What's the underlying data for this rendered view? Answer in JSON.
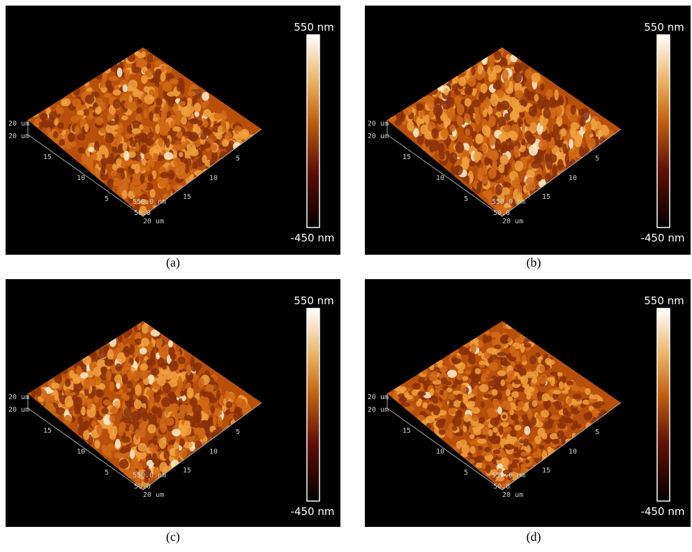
{
  "panels": [
    {
      "label": "(a)",
      "colorbar": {
        "max": "550 nm",
        "min": "-450 nm"
      },
      "axis_labels": [
        "20 um",
        "20 um",
        "15",
        "10",
        "5",
        "550.0 nm",
        "50.0",
        "20 um",
        "15",
        "10",
        "5"
      ]
    },
    {
      "label": "(b)",
      "colorbar": {
        "max": "550 nm",
        "min": "-450 nm"
      },
      "axis_labels": [
        "20 um",
        "20 um",
        "15",
        "10",
        "5",
        "550.0 nm",
        "50.0",
        "20 um",
        "15",
        "10",
        "5"
      ]
    },
    {
      "label": "(c)",
      "colorbar": {
        "max": "550 nm",
        "min": "-450 nm"
      },
      "axis_labels": [
        "20 um",
        "20 um",
        "15",
        "10",
        "5",
        "550.0 nm",
        "50.0",
        "20 um",
        "15",
        "10",
        "5"
      ]
    },
    {
      "label": "(d)",
      "colorbar": {
        "max": "550 nm",
        "min": "-450 nm"
      },
      "axis_labels": [
        "20 um",
        "20 um",
        "15",
        "10",
        "5",
        "550.0 nm",
        "50.0",
        "20 um",
        "15",
        "10",
        "5"
      ]
    }
  ]
}
